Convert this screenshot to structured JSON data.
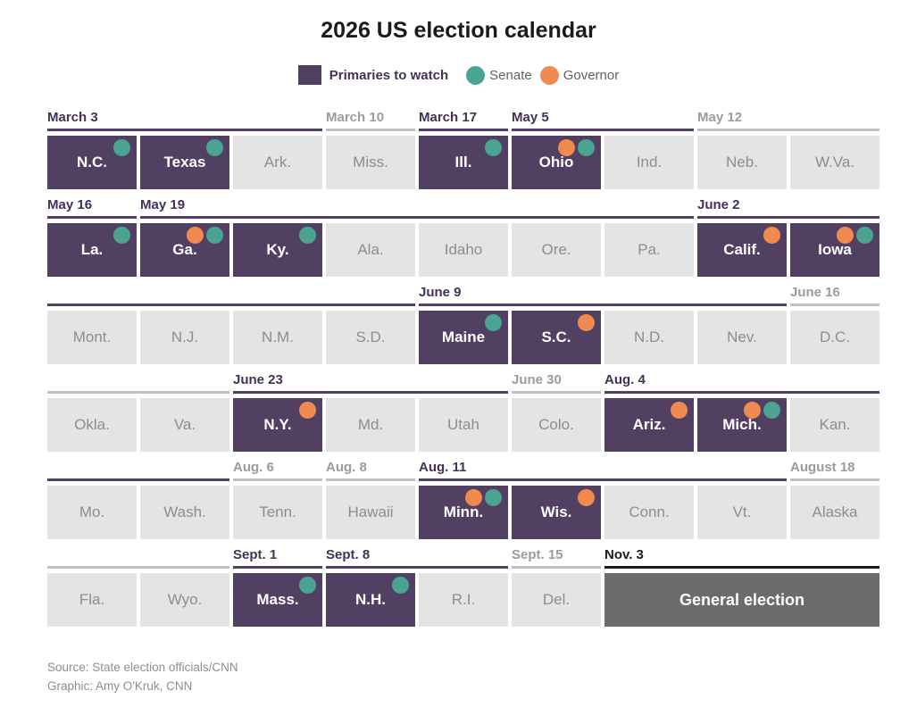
{
  "title": "2026 US election calendar",
  "legend": {
    "primaries": "Primaries to watch",
    "senate": "Senate",
    "governor": "Governor"
  },
  "colors": {
    "primary_purple": "#514062",
    "date_label_purple": "#433157",
    "senate_teal": "#4BA492",
    "governor_orange": "#F08A4F",
    "regular_cell_bg": "#E4E4E4",
    "regular_cell_text": "#8D8D8D",
    "gray_label_text": "#9B9BA0",
    "gray_label_line": "#C1C1C1",
    "general_election_bg": "#6B6B6B",
    "black": "#1A1A1A"
  },
  "calendar": {
    "columns": 9,
    "rows": [
      {
        "groups": [
          {
            "label": "March 3",
            "span": 3,
            "style": "purple"
          },
          {
            "label": "March 10",
            "span": 1,
            "style": "gray"
          },
          {
            "label": "March 17",
            "span": 1,
            "style": "purple"
          },
          {
            "label": "May 5",
            "span": 2,
            "style": "purple"
          },
          {
            "label": "May 12",
            "span": 2,
            "style": "gray"
          }
        ],
        "cells": [
          {
            "state": "N.C.",
            "type": "primary",
            "dots": [
              "senate"
            ]
          },
          {
            "state": "Texas",
            "type": "primary",
            "dots": [
              "senate"
            ]
          },
          {
            "state": "Ark.",
            "type": "regular",
            "dots": []
          },
          {
            "state": "Miss.",
            "type": "regular",
            "dots": []
          },
          {
            "state": "Ill.",
            "type": "primary",
            "dots": [
              "senate"
            ]
          },
          {
            "state": "Ohio",
            "type": "primary",
            "dots": [
              "governor",
              "senate"
            ]
          },
          {
            "state": "Ind.",
            "type": "regular",
            "dots": []
          },
          {
            "state": "Neb.",
            "type": "regular",
            "dots": []
          },
          {
            "state": "W.Va.",
            "type": "regular",
            "dots": []
          }
        ]
      },
      {
        "groups": [
          {
            "label": "May 16",
            "span": 1,
            "style": "purple"
          },
          {
            "label": "May 19",
            "span": 6,
            "style": "purple"
          },
          {
            "label": "June 2",
            "span": 2,
            "style": "purple"
          }
        ],
        "cells": [
          {
            "state": "La.",
            "type": "primary",
            "dots": [
              "senate"
            ]
          },
          {
            "state": "Ga.",
            "type": "primary",
            "dots": [
              "governor",
              "senate"
            ]
          },
          {
            "state": "Ky.",
            "type": "primary",
            "dots": [
              "senate"
            ]
          },
          {
            "state": "Ala.",
            "type": "regular",
            "dots": []
          },
          {
            "state": "Idaho",
            "type": "regular",
            "dots": []
          },
          {
            "state": "Ore.",
            "type": "regular",
            "dots": []
          },
          {
            "state": "Pa.",
            "type": "regular",
            "dots": []
          },
          {
            "state": "Calif.",
            "type": "primary",
            "dots": [
              "governor"
            ]
          },
          {
            "state": "Iowa",
            "type": "primary",
            "dots": [
              "governor",
              "senate"
            ]
          }
        ]
      },
      {
        "groups": [
          {
            "label": "",
            "span": 4,
            "style": "purple"
          },
          {
            "label": "June 9",
            "span": 4,
            "style": "purple"
          },
          {
            "label": "June 16",
            "span": 1,
            "style": "gray"
          }
        ],
        "cells": [
          {
            "state": "Mont.",
            "type": "regular",
            "dots": []
          },
          {
            "state": "N.J.",
            "type": "regular",
            "dots": []
          },
          {
            "state": "N.M.",
            "type": "regular",
            "dots": []
          },
          {
            "state": "S.D.",
            "type": "regular",
            "dots": []
          },
          {
            "state": "Maine",
            "type": "primary",
            "dots": [
              "senate"
            ]
          },
          {
            "state": "S.C.",
            "type": "primary",
            "dots": [
              "governor"
            ]
          },
          {
            "state": "N.D.",
            "type": "regular",
            "dots": []
          },
          {
            "state": "Nev.",
            "type": "regular",
            "dots": []
          },
          {
            "state": "D.C.",
            "type": "regular",
            "dots": []
          }
        ]
      },
      {
        "groups": [
          {
            "label": "",
            "span": 2,
            "style": "gray"
          },
          {
            "label": "June 23",
            "span": 3,
            "style": "purple"
          },
          {
            "label": "June 30",
            "span": 1,
            "style": "gray"
          },
          {
            "label": "Aug. 4",
            "span": 3,
            "style": "purple"
          }
        ],
        "cells": [
          {
            "state": "Okla.",
            "type": "regular",
            "dots": []
          },
          {
            "state": "Va.",
            "type": "regular",
            "dots": []
          },
          {
            "state": "N.Y.",
            "type": "primary",
            "dots": [
              "governor"
            ]
          },
          {
            "state": "Md.",
            "type": "regular",
            "dots": []
          },
          {
            "state": "Utah",
            "type": "regular",
            "dots": []
          },
          {
            "state": "Colo.",
            "type": "regular",
            "dots": []
          },
          {
            "state": "Ariz.",
            "type": "primary",
            "dots": [
              "governor"
            ]
          },
          {
            "state": "Mich.",
            "type": "primary",
            "dots": [
              "governor",
              "senate"
            ]
          },
          {
            "state": "Kan.",
            "type": "regular",
            "dots": []
          }
        ]
      },
      {
        "groups": [
          {
            "label": "",
            "span": 2,
            "style": "purple"
          },
          {
            "label": "Aug. 6",
            "span": 1,
            "style": "gray"
          },
          {
            "label": "Aug. 8",
            "span": 1,
            "style": "gray"
          },
          {
            "label": "Aug. 11",
            "span": 4,
            "style": "purple"
          },
          {
            "label": "August 18",
            "span": 1,
            "style": "gray"
          }
        ],
        "cells": [
          {
            "state": "Mo.",
            "type": "regular",
            "dots": []
          },
          {
            "state": "Wash.",
            "type": "regular",
            "dots": []
          },
          {
            "state": "Tenn.",
            "type": "regular",
            "dots": []
          },
          {
            "state": "Hawaii",
            "type": "regular",
            "dots": []
          },
          {
            "state": "Minn.",
            "type": "primary",
            "dots": [
              "governor",
              "senate"
            ]
          },
          {
            "state": "Wis.",
            "type": "primary",
            "dots": [
              "governor"
            ]
          },
          {
            "state": "Conn.",
            "type": "regular",
            "dots": []
          },
          {
            "state": "Vt.",
            "type": "regular",
            "dots": []
          },
          {
            "state": "Alaska",
            "type": "regular",
            "dots": []
          }
        ]
      },
      {
        "groups": [
          {
            "label": "",
            "span": 2,
            "style": "gray"
          },
          {
            "label": "Sept. 1",
            "span": 1,
            "style": "purple"
          },
          {
            "label": "Sept. 8",
            "span": 2,
            "style": "purple"
          },
          {
            "label": "Sept. 15",
            "span": 1,
            "style": "gray"
          },
          {
            "label": "Nov. 3",
            "span": 3,
            "style": "black"
          }
        ],
        "cells": [
          {
            "state": "Fla.",
            "type": "regular",
            "dots": []
          },
          {
            "state": "Wyo.",
            "type": "regular",
            "dots": []
          },
          {
            "state": "Mass.",
            "type": "primary",
            "dots": [
              "senate"
            ]
          },
          {
            "state": "N.H.",
            "type": "primary",
            "dots": [
              "senate"
            ]
          },
          {
            "state": "R.I.",
            "type": "regular",
            "dots": []
          },
          {
            "state": "Del.",
            "type": "regular",
            "dots": []
          },
          {
            "state": "General election",
            "type": "general",
            "span": 3,
            "dots": []
          }
        ]
      }
    ]
  },
  "footer": {
    "source": "Source: State election officials/CNN",
    "credit": "Graphic: Amy O'Kruk, CNN"
  },
  "chart_data": {
    "type": "table",
    "title": "2026 US election calendar",
    "legend": [
      "Primaries to watch",
      "Senate",
      "Governor"
    ],
    "columns": [
      "state",
      "primary_date",
      "primary_to_watch",
      "senate_race",
      "governor_race"
    ],
    "rows": [
      [
        "N.C.",
        "March 3",
        true,
        true,
        false
      ],
      [
        "Texas",
        "March 3",
        true,
        true,
        false
      ],
      [
        "Ark.",
        "March 3",
        false,
        false,
        false
      ],
      [
        "Miss.",
        "March 10",
        false,
        false,
        false
      ],
      [
        "Ill.",
        "March 17",
        true,
        true,
        false
      ],
      [
        "Ohio",
        "May 5",
        true,
        true,
        true
      ],
      [
        "Ind.",
        "May 5",
        false,
        false,
        false
      ],
      [
        "Neb.",
        "May 12",
        false,
        false,
        false
      ],
      [
        "W.Va.",
        "May 12",
        false,
        false,
        false
      ],
      [
        "La.",
        "May 16",
        true,
        true,
        false
      ],
      [
        "Ga.",
        "May 19",
        true,
        true,
        true
      ],
      [
        "Ky.",
        "May 19",
        true,
        true,
        false
      ],
      [
        "Ala.",
        "May 19",
        false,
        false,
        false
      ],
      [
        "Idaho",
        "May 19",
        false,
        false,
        false
      ],
      [
        "Ore.",
        "May 19",
        false,
        false,
        false
      ],
      [
        "Pa.",
        "May 19",
        false,
        false,
        false
      ],
      [
        "Calif.",
        "June 2",
        true,
        false,
        true
      ],
      [
        "Iowa",
        "June 2",
        true,
        true,
        true
      ],
      [
        "Mont.",
        "June 2",
        false,
        false,
        false
      ],
      [
        "N.J.",
        "June 2",
        false,
        false,
        false
      ],
      [
        "N.M.",
        "June 2",
        false,
        false,
        false
      ],
      [
        "S.D.",
        "June 2",
        false,
        false,
        false
      ],
      [
        "Maine",
        "June 9",
        true,
        true,
        false
      ],
      [
        "S.C.",
        "June 9",
        true,
        false,
        true
      ],
      [
        "N.D.",
        "June 9",
        false,
        false,
        false
      ],
      [
        "Nev.",
        "June 9",
        false,
        false,
        false
      ],
      [
        "D.C.",
        "June 16",
        false,
        false,
        false
      ],
      [
        "Okla.",
        "June 16",
        false,
        false,
        false
      ],
      [
        "Va.",
        "June 16",
        false,
        false,
        false
      ],
      [
        "N.Y.",
        "June 23",
        true,
        false,
        true
      ],
      [
        "Md.",
        "June 23",
        false,
        false,
        false
      ],
      [
        "Utah",
        "June 23",
        false,
        false,
        false
      ],
      [
        "Colo.",
        "June 30",
        false,
        false,
        false
      ],
      [
        "Ariz.",
        "Aug. 4",
        true,
        false,
        true
      ],
      [
        "Mich.",
        "Aug. 4",
        true,
        true,
        true
      ],
      [
        "Kan.",
        "Aug. 4",
        false,
        false,
        false
      ],
      [
        "Mo.",
        "Aug. 4",
        false,
        false,
        false
      ],
      [
        "Wash.",
        "Aug. 4",
        false,
        false,
        false
      ],
      [
        "Tenn.",
        "Aug. 6",
        false,
        false,
        false
      ],
      [
        "Hawaii",
        "Aug. 8",
        false,
        false,
        false
      ],
      [
        "Minn.",
        "Aug. 11",
        true,
        true,
        true
      ],
      [
        "Wis.",
        "Aug. 11",
        true,
        false,
        true
      ],
      [
        "Conn.",
        "Aug. 11",
        false,
        false,
        false
      ],
      [
        "Vt.",
        "Aug. 11",
        false,
        false,
        false
      ],
      [
        "Alaska",
        "August 18",
        false,
        false,
        false
      ],
      [
        "Fla.",
        "August 18",
        false,
        false,
        false
      ],
      [
        "Wyo.",
        "August 18",
        false,
        false,
        false
      ],
      [
        "Mass.",
        "Sept. 1",
        true,
        true,
        false
      ],
      [
        "N.H.",
        "Sept. 8",
        true,
        true,
        false
      ],
      [
        "R.I.",
        "Sept. 8",
        false,
        false,
        false
      ],
      [
        "Del.",
        "Sept. 15",
        false,
        false,
        false
      ],
      [
        "General election",
        "Nov. 3",
        false,
        false,
        false
      ]
    ]
  }
}
